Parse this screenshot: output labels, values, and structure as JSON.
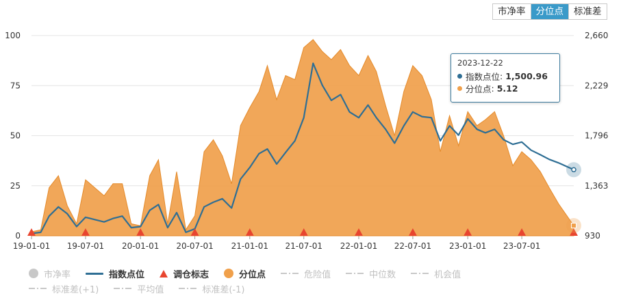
{
  "tabs": [
    {
      "label": "市净率",
      "active": false
    },
    {
      "label": "分位点",
      "active": true
    },
    {
      "label": "标准差",
      "active": false
    }
  ],
  "tooltip": {
    "date": "2023-12-22",
    "rows": [
      {
        "label": "指数点位",
        "value": "1,500.96",
        "color": "#2e6e94"
      },
      {
        "label": "分位点",
        "value": "5.12",
        "color": "#f0a04b"
      }
    ]
  },
  "legend": [
    {
      "label": "市净率",
      "marker": "circle",
      "color": "#c8c8c8",
      "active": false
    },
    {
      "label": "指数点位",
      "marker": "line",
      "color": "#2e6e94",
      "active": true
    },
    {
      "label": "调仓标志",
      "marker": "triangle",
      "color": "#e8452f",
      "active": true
    },
    {
      "label": "分位点",
      "marker": "circle",
      "color": "#f0a04b",
      "active": true
    },
    {
      "label": "危险值",
      "marker": "dash",
      "color": "#c8c8c8",
      "active": false
    },
    {
      "label": "中位数",
      "marker": "dash",
      "color": "#c8c8c8",
      "active": false
    },
    {
      "label": "机会值",
      "marker": "dash",
      "color": "#c8c8c8",
      "active": false
    },
    {
      "label": "标准差(+1)",
      "marker": "dash",
      "color": "#c8c8c8",
      "active": false
    },
    {
      "label": "平均值",
      "marker": "dash",
      "color": "#c8c8c8",
      "active": false
    },
    {
      "label": "标准差(-1)",
      "marker": "dash",
      "color": "#c8c8c8",
      "active": false
    }
  ],
  "chart_data": {
    "type": "area",
    "x_ticks": [
      "19-01-01",
      "19-07-01",
      "20-01-01",
      "20-07-01",
      "21-01-01",
      "21-07-01",
      "22-01-01",
      "22-07-01",
      "23-01-01",
      "23-07-01"
    ],
    "x_range": [
      "2019-01-01",
      "2023-12-22"
    ],
    "y_left_ticks": [
      "0",
      "25",
      "50",
      "75",
      "100"
    ],
    "y_left_range": [
      0,
      100
    ],
    "y_right_ticks": [
      "930",
      "1,363",
      "1,796",
      "2,229",
      "2,660"
    ],
    "y_right_range": [
      930,
      2660
    ],
    "colors": {
      "percentile": "#f0a04b",
      "index": "#2e6e94",
      "rebalance": "#e8452f"
    },
    "series": [
      {
        "name": "分位点",
        "axis": "left",
        "x": [
          "2019-01-01",
          "2019-02-01",
          "2019-03-01",
          "2019-04-01",
          "2019-05-01",
          "2019-06-01",
          "2019-07-01",
          "2019-08-01",
          "2019-09-01",
          "2019-10-01",
          "2019-11-01",
          "2019-12-01",
          "2020-01-01",
          "2020-02-01",
          "2020-03-01",
          "2020-04-01",
          "2020-05-01",
          "2020-06-01",
          "2020-07-01",
          "2020-08-01",
          "2020-09-01",
          "2020-10-01",
          "2020-11-01",
          "2020-12-01",
          "2021-01-01",
          "2021-02-01",
          "2021-03-01",
          "2021-04-01",
          "2021-05-01",
          "2021-06-01",
          "2021-07-01",
          "2021-08-01",
          "2021-09-01",
          "2021-10-01",
          "2021-11-01",
          "2021-12-01",
          "2022-01-01",
          "2022-02-01",
          "2022-03-01",
          "2022-04-01",
          "2022-05-01",
          "2022-06-01",
          "2022-07-01",
          "2022-08-01",
          "2022-09-01",
          "2022-10-01",
          "2022-11-01",
          "2022-12-01",
          "2023-01-01",
          "2023-02-01",
          "2023-03-01",
          "2023-04-01",
          "2023-05-01",
          "2023-06-01",
          "2023-07-01",
          "2023-08-01",
          "2023-09-01",
          "2023-10-01",
          "2023-11-01",
          "2023-12-22"
        ],
        "values": [
          2,
          3,
          24,
          30,
          15,
          6,
          28,
          24,
          20,
          26,
          26,
          6,
          5,
          30,
          38,
          6,
          32,
          3,
          10,
          42,
          48,
          40,
          26,
          55,
          64,
          72,
          85,
          68,
          80,
          78,
          94,
          98,
          92,
          88,
          93,
          85,
          80,
          90,
          82,
          65,
          50,
          72,
          85,
          80,
          68,
          42,
          60,
          45,
          62,
          55,
          58,
          62,
          50,
          35,
          42,
          38,
          32,
          24,
          16,
          5.12
        ]
      },
      {
        "name": "指数点位",
        "axis": "right",
        "x": [
          "2019-01-01",
          "2019-02-01",
          "2019-03-01",
          "2019-04-01",
          "2019-05-01",
          "2019-06-01",
          "2019-07-01",
          "2019-08-01",
          "2019-09-01",
          "2019-10-01",
          "2019-11-01",
          "2019-12-01",
          "2020-01-01",
          "2020-02-01",
          "2020-03-01",
          "2020-04-01",
          "2020-05-01",
          "2020-06-01",
          "2020-07-01",
          "2020-08-01",
          "2020-09-01",
          "2020-10-01",
          "2020-11-01",
          "2020-12-01",
          "2021-01-01",
          "2021-02-01",
          "2021-03-01",
          "2021-04-01",
          "2021-05-01",
          "2021-06-01",
          "2021-07-01",
          "2021-08-01",
          "2021-09-01",
          "2021-10-01",
          "2021-11-01",
          "2021-12-01",
          "2022-01-01",
          "2022-02-01",
          "2022-03-01",
          "2022-04-01",
          "2022-05-01",
          "2022-06-01",
          "2022-07-01",
          "2022-08-01",
          "2022-09-01",
          "2022-10-01",
          "2022-11-01",
          "2022-12-01",
          "2023-01-01",
          "2023-02-01",
          "2023-03-01",
          "2023-04-01",
          "2023-05-01",
          "2023-06-01",
          "2023-07-01",
          "2023-08-01",
          "2023-09-01",
          "2023-10-01",
          "2023-11-01",
          "2023-12-22"
        ],
        "values": [
          950,
          960,
          1100,
          1180,
          1120,
          1010,
          1090,
          1070,
          1050,
          1080,
          1100,
          1000,
          1010,
          1150,
          1200,
          1000,
          1130,
          960,
          990,
          1180,
          1220,
          1250,
          1170,
          1420,
          1520,
          1640,
          1680,
          1550,
          1650,
          1750,
          1950,
          2420,
          2230,
          2100,
          2150,
          2000,
          1950,
          2060,
          1950,
          1850,
          1730,
          1880,
          2000,
          1960,
          1950,
          1750,
          1880,
          1800,
          1940,
          1850,
          1820,
          1850,
          1760,
          1720,
          1740,
          1670,
          1630,
          1590,
          1560,
          1500.96
        ]
      }
    ],
    "rebalance_dates": [
      "2019-01-01",
      "2019-07-01",
      "2020-01-01",
      "2020-07-01",
      "2021-01-01",
      "2021-07-01",
      "2022-01-01",
      "2022-07-01",
      "2023-01-01",
      "2023-07-01",
      "2023-12-22"
    ]
  }
}
